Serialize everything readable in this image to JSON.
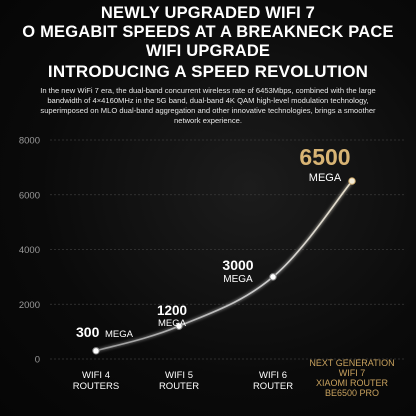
{
  "header": {
    "line1": "NEWLY UPGRADED WIFI 7",
    "line2": "O MEGABIT SPEEDS AT A BREAKNECK PACE",
    "line3": "WIFI UPGRADE",
    "line4": "INTRODUCING A SPEED REVOLUTION"
  },
  "description": {
    "line1": "In the new WiFi 7 era, the dual-band concurrent wireless rate of 6453Mbps, combined with the large",
    "line2": "bandwidth of 4×4160MHz in the 5G band, dual-band 4K QAM high-level modulation technology,",
    "line3": "superimposed on MLO dual-band aggregation and other innovative technologies, brings a smoother",
    "line4": "network experience."
  },
  "colors": {
    "line": "#c9c9c9",
    "highlight": "#d8b474",
    "grid": "#3a3a3a",
    "tick": "#9a9a9a"
  },
  "chart_data": {
    "type": "line",
    "ylim": [
      0,
      8000
    ],
    "yticks": [
      "0",
      "2000",
      "4000",
      "6000",
      "8000"
    ],
    "grid": true,
    "categories": [
      [
        "WIFI 4",
        "ROUTERS"
      ],
      [
        "WIFI 5",
        "ROUTER"
      ],
      [
        "WIFI 6",
        "ROUTER"
      ],
      [
        "NEXT GENERATION",
        "WIFI 7",
        "XIAOMI ROUTER",
        "BE6500 PRO"
      ]
    ],
    "values": [
      300,
      1200,
      3000,
      6500
    ],
    "data_labels": [
      {
        "value": "300",
        "unit": "MEGA"
      },
      {
        "value": "1200",
        "unit": "MEGA"
      },
      {
        "value": "3000",
        "unit": "MEGA"
      },
      {
        "value": "6500",
        "unit": "MEGA"
      }
    ]
  }
}
